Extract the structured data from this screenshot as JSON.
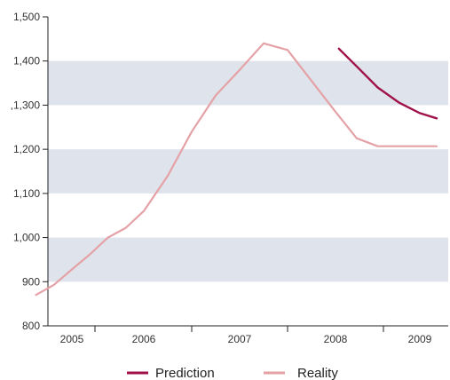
{
  "chart_data": {
    "type": "line",
    "x_categories": [
      "2005",
      "2006",
      "2007",
      "2008",
      "2009"
    ],
    "y_tick_labels": [
      "800",
      "900",
      "1,000",
      "1,100",
      "1,200",
      ",1,300",
      "1,400",
      "1,500"
    ],
    "ylim": [
      800,
      1500
    ],
    "y_ticks": [
      800,
      900,
      1000,
      1100,
      1200,
      1300,
      1400,
      1500
    ],
    "grid": "alternating horizontal bands",
    "band_color": "#dfe3ec",
    "legend_position": "bottom",
    "series": [
      {
        "name": "Prediction",
        "color": "#a0124a",
        "x": [
          2008.04,
          2008.25,
          2008.5,
          2008.75,
          2009.0,
          2009.2
        ],
        "values": [
          1428,
          1388,
          1340,
          1306,
          1282,
          1270
        ]
      },
      {
        "name": "Reality",
        "color": "#e4a2a6",
        "x": [
          2004.5,
          2004.75,
          2005.0,
          2005.25,
          2005.5,
          2005.75,
          2006.0,
          2006.25,
          2006.5,
          2006.75,
          2007.0,
          2007.25,
          2007.5,
          2007.75,
          2008.0,
          2008.25,
          2008.5,
          2008.75,
          2009.0,
          2009.2
        ],
        "values": [
          870,
          893,
          928,
          962,
          1000,
          1022,
          1060,
          1140,
          1240,
          1322,
          1380,
          1440,
          1425,
          1355,
          1285,
          1225,
          1207,
          1207,
          1207,
          1207
        ]
      }
    ]
  }
}
